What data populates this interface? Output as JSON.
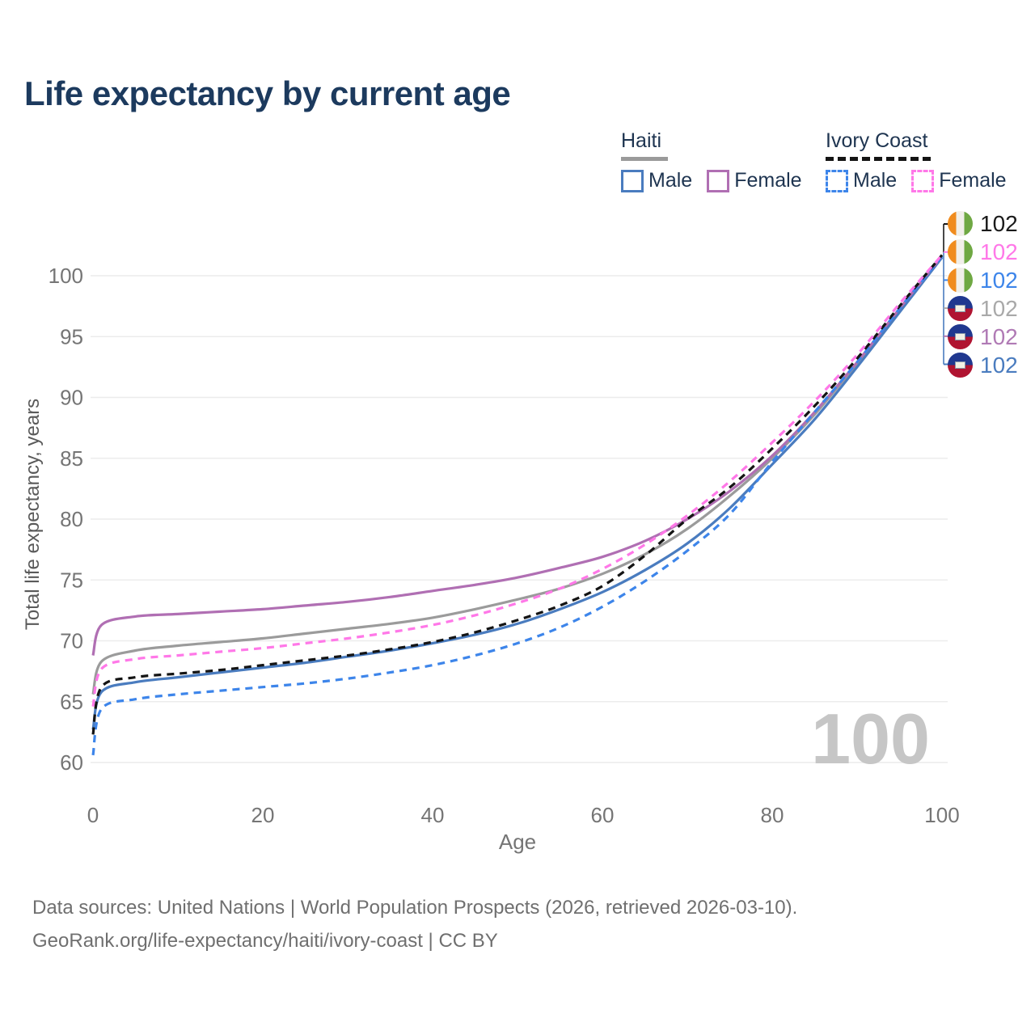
{
  "title": "Life expectancy by current age",
  "legend": {
    "haiti": {
      "label": "Haiti",
      "male_label": "Male",
      "female_label": "Female",
      "male_color": "#4a7cbf",
      "female_color": "#b06fb3",
      "underline_color": "#9a9a9a",
      "line_style": "solid"
    },
    "ivory_coast": {
      "label": "Ivory Coast",
      "male_label": "Male",
      "female_label": "Female",
      "male_color": "#3d85ea",
      "female_color": "#ff78e8",
      "underline_color": "#141414",
      "line_style": "dashed"
    }
  },
  "hover": {
    "age_label": "100"
  },
  "end_labels": {
    "rows": [
      {
        "flag": "ivory-coast",
        "value": "102",
        "color": "#1a1a1a"
      },
      {
        "flag": "ivory-coast",
        "value": "102",
        "color": "#ff78e8"
      },
      {
        "flag": "ivory-coast",
        "value": "102",
        "color": "#3d85ea"
      },
      {
        "flag": "haiti",
        "value": "102",
        "color": "#a9a9a9"
      },
      {
        "flag": "haiti",
        "value": "102",
        "color": "#b07ab5"
      },
      {
        "flag": "haiti",
        "value": "102",
        "color": "#4a7cbf"
      }
    ]
  },
  "footer": {
    "line1": "Data sources: United Nations | World Population Prospects (2026, retrieved 2026-03-10).",
    "line2": "GeoRank.org/life-expectancy/haiti/ivory-coast | CC BY"
  },
  "colors": {
    "title_text": "#1c3a5e",
    "legend_text": "#1e3450",
    "axis_text": "#757575",
    "gridline": "#ececec",
    "watermark": "#c6c6c6",
    "footer_text": "#6f6f6f"
  },
  "chart_data": {
    "type": "line",
    "title": "Life expectancy by current age",
    "xlabel": "Age",
    "ylabel": "Total life expectancy, years",
    "xlim": [
      0,
      100
    ],
    "ylim": [
      60,
      102
    ],
    "x_ticks": [
      0,
      20,
      40,
      60,
      80,
      100
    ],
    "y_ticks": [
      60,
      65,
      70,
      75,
      80,
      85,
      90,
      95,
      100
    ],
    "grid": "horizontal",
    "legend_position": "top-right",
    "x": [
      0,
      1,
      5,
      10,
      15,
      20,
      25,
      30,
      35,
      40,
      45,
      50,
      55,
      60,
      65,
      70,
      75,
      80,
      85,
      90,
      95,
      100
    ],
    "series": [
      {
        "name": "Haiti Both sexes",
        "country": "Haiti",
        "sex": "Both",
        "color": "#9b9b9b",
        "dashed": false,
        "values": [
          65.6,
          68.3,
          69.2,
          69.6,
          69.9,
          70.2,
          70.6,
          71.0,
          71.4,
          71.9,
          72.6,
          73.4,
          74.3,
          75.5,
          77.1,
          79.2,
          81.9,
          85.0,
          88.6,
          92.8,
          97.2,
          101.6
        ]
      },
      {
        "name": "Haiti Male",
        "country": "Haiti",
        "sex": "Male",
        "color": "#4a7cbf",
        "dashed": false,
        "values": [
          62.7,
          65.8,
          66.6,
          67.0,
          67.4,
          67.8,
          68.2,
          68.7,
          69.2,
          69.8,
          70.5,
          71.4,
          72.6,
          74.0,
          75.8,
          78.0,
          80.9,
          84.5,
          88.2,
          92.5,
          97.0,
          101.5
        ]
      },
      {
        "name": "Haiti Female",
        "country": "Haiti",
        "sex": "Female",
        "color": "#b06fb3",
        "dashed": false,
        "values": [
          68.8,
          71.3,
          72.0,
          72.2,
          72.4,
          72.6,
          72.9,
          73.2,
          73.6,
          74.1,
          74.6,
          75.2,
          76.0,
          76.9,
          78.2,
          80.0,
          82.3,
          85.2,
          88.8,
          92.9,
          97.3,
          101.6
        ]
      },
      {
        "name": "Ivory Coast Male",
        "country": "Ivory Coast",
        "sex": "Male",
        "color": "#3d85ea",
        "dashed": true,
        "values": [
          60.6,
          64.4,
          65.2,
          65.6,
          65.9,
          66.2,
          66.5,
          66.9,
          67.4,
          68.0,
          68.8,
          69.8,
          71.1,
          72.8,
          74.9,
          77.4,
          80.4,
          84.7,
          88.8,
          92.9,
          97.3,
          101.6
        ]
      },
      {
        "name": "Ivory Coast Both sexes",
        "country": "Ivory Coast",
        "sex": "Both",
        "color": "#141414",
        "dashed": true,
        "values": [
          62.3,
          66.2,
          67.0,
          67.3,
          67.6,
          68.0,
          68.4,
          68.8,
          69.3,
          69.9,
          70.7,
          71.7,
          72.9,
          74.5,
          77.0,
          80.0,
          82.6,
          85.8,
          89.3,
          93.2,
          97.5,
          101.7
        ]
      },
      {
        "name": "Ivory Coast Female",
        "country": "Ivory Coast",
        "sex": "Female",
        "color": "#ff78e8",
        "dashed": true,
        "values": [
          64.6,
          67.7,
          68.5,
          68.8,
          69.1,
          69.4,
          69.8,
          70.2,
          70.7,
          71.3,
          72.1,
          73.1,
          74.3,
          75.9,
          77.9,
          80.3,
          83.1,
          86.3,
          89.7,
          93.5,
          97.7,
          101.7
        ]
      }
    ]
  }
}
